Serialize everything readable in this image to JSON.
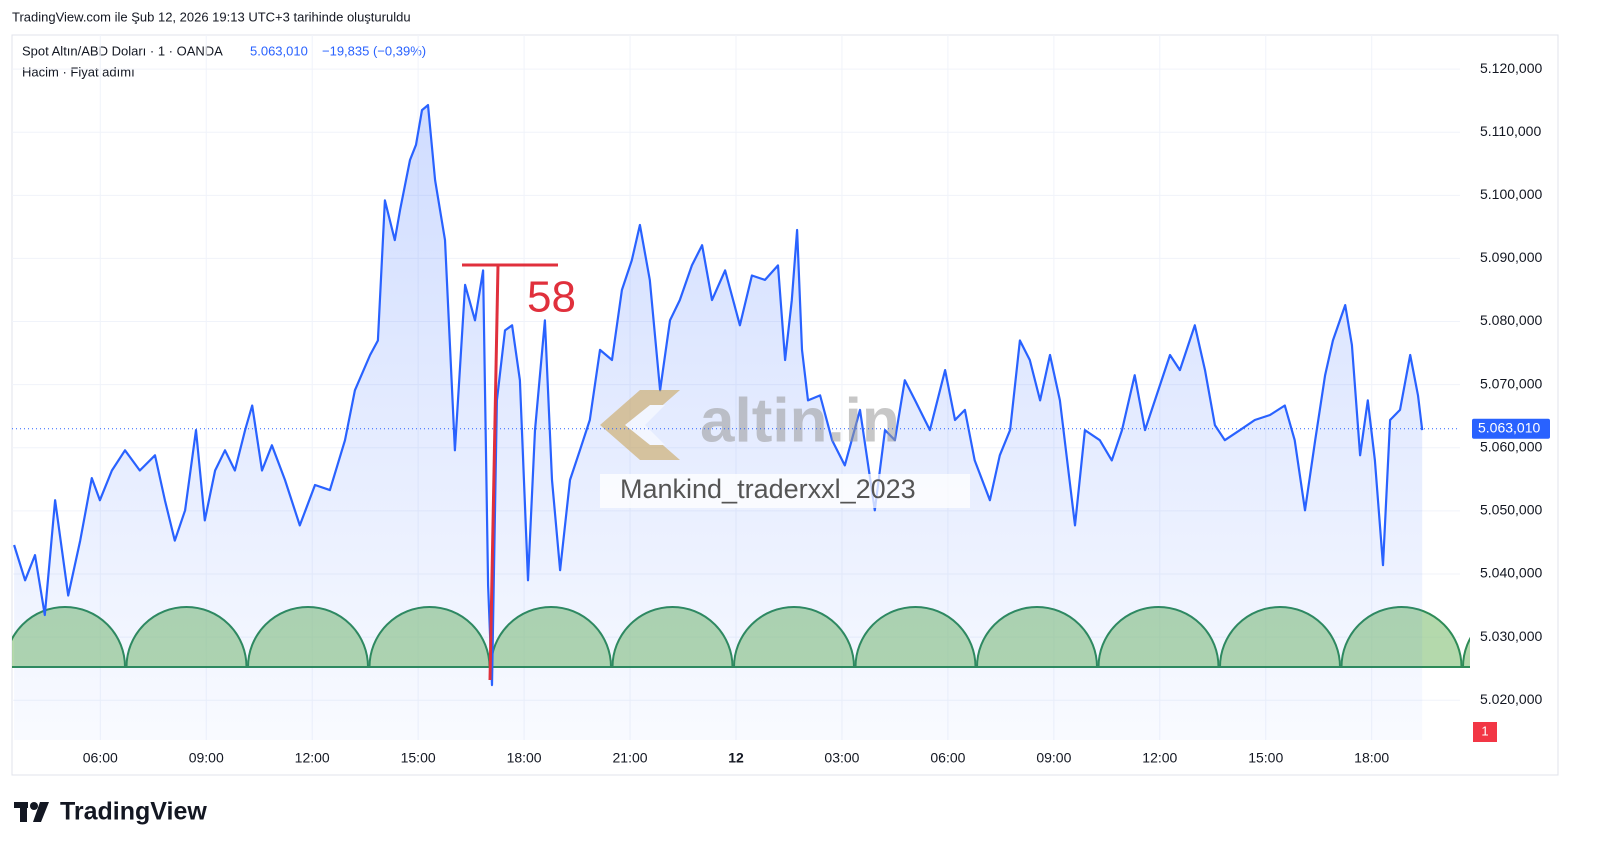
{
  "chart_data": {
    "type": "area",
    "caption": "TradingView.com ile Şub 12, 2026 19:13 UTC+3 tarihinde oluşturuldu",
    "title": "Spot Altın/ABD Doları · 1 · OANDA",
    "last_price": {
      "value": 5063.01,
      "label": "5.063,010"
    },
    "change": "−19,835 (−0,39%)",
    "subtitle": "Hacim · Fiyat adımı",
    "color": "#2962ff",
    "annotation": "58",
    "watermark": "altin.in",
    "watermark_user": "Mankind_traderxxl_2023",
    "alert_count": 1,
    "brand": "TradingView",
    "xlim": [
      3.5,
      44.5
    ],
    "ylim": [
      5013.7,
      5125.4
    ],
    "xticks": [
      {
        "value": 6,
        "label": "06:00"
      },
      {
        "value": 9,
        "label": "09:00"
      },
      {
        "value": 12,
        "label": "12:00"
      },
      {
        "value": 15,
        "label": "15:00"
      },
      {
        "value": 18,
        "label": "18:00"
      },
      {
        "value": 21,
        "label": "21:00"
      },
      {
        "value": 24,
        "label": "12"
      },
      {
        "value": 27,
        "label": "03:00"
      },
      {
        "value": 30,
        "label": "06:00"
      },
      {
        "value": 33,
        "label": "09:00"
      },
      {
        "value": 36,
        "label": "12:00"
      },
      {
        "value": 39,
        "label": "15:00"
      },
      {
        "value": 42,
        "label": "18:00"
      }
    ],
    "yticks": [
      {
        "value": 5020,
        "label": "5.020,000"
      },
      {
        "value": 5030,
        "label": "5.030,000"
      },
      {
        "value": 5040,
        "label": "5.040,000"
      },
      {
        "value": 5050,
        "label": "5.050,000"
      },
      {
        "value": 5060,
        "label": "5.060,000"
      },
      {
        "value": 5070,
        "label": "5.070,000"
      },
      {
        "value": 5080,
        "label": "5.080,000"
      },
      {
        "value": 5090,
        "label": "5.090,000"
      },
      {
        "value": 5100,
        "label": "5.100,000"
      },
      {
        "value": 5110,
        "label": "5.110,000"
      },
      {
        "value": 5120,
        "label": "5.120,000"
      }
    ],
    "x": [
      3.56,
      3.87,
      4.15,
      4.43,
      4.72,
      5.09,
      5.43,
      5.76,
      5.99,
      6.33,
      6.7,
      7.12,
      7.55,
      7.83,
      8.11,
      8.4,
      8.71,
      8.96,
      9.25,
      9.53,
      9.81,
      10.1,
      10.3,
      10.58,
      10.86,
      11.23,
      11.65,
      12.08,
      12.5,
      12.93,
      13.21,
      13.64,
      13.86,
      14.06,
      14.34,
      14.49,
      14.77,
      14.94,
      15.11,
      15.28,
      15.48,
      15.76,
      16.04,
      16.33,
      16.61,
      16.84,
      16.98,
      17.09,
      17.23,
      17.46,
      17.66,
      17.88,
      18.11,
      18.31,
      18.59,
      18.79,
      19.02,
      19.3,
      19.58,
      19.86,
      20.15,
      20.49,
      20.77,
      21.05,
      21.28,
      21.56,
      21.85,
      22.13,
      22.41,
      22.75,
      23.04,
      23.32,
      23.69,
      24.11,
      24.45,
      24.82,
      25.19,
      25.39,
      25.58,
      25.73,
      25.87,
      26.04,
      26.38,
      26.72,
      27.08,
      27.51,
      27.93,
      28.22,
      28.5,
      28.78,
      29.07,
      29.49,
      29.92,
      30.2,
      30.48,
      30.76,
      31.19,
      31.47,
      31.76,
      32.04,
      32.32,
      32.61,
      32.89,
      33.17,
      33.6,
      33.88,
      34.3,
      34.64,
      34.93,
      35.29,
      35.58,
      35.86,
      36.29,
      36.57,
      36.99,
      37.28,
      37.56,
      37.84,
      38.27,
      38.69,
      39.12,
      39.54,
      39.82,
      40.11,
      40.4,
      40.68,
      40.9,
      41.25,
      41.44,
      41.67,
      41.89,
      42.09,
      42.32,
      42.52,
      42.8,
      43.09,
      43.31,
      43.43
    ],
    "values": [
      5044.6,
      5039.0,
      5043.0,
      5033.5,
      5051.7,
      5036.6,
      5045.3,
      5055.2,
      5051.7,
      5056.4,
      5059.6,
      5056.4,
      5058.8,
      5051.7,
      5045.3,
      5050.1,
      5062.8,
      5048.5,
      5056.4,
      5059.6,
      5056.4,
      5062.8,
      5066.7,
      5056.4,
      5060.4,
      5054.9,
      5047.7,
      5054.1,
      5053.3,
      5061.2,
      5069.1,
      5074.7,
      5077.0,
      5099.2,
      5092.9,
      5097.7,
      5105.6,
      5108.0,
      5113.5,
      5114.3,
      5102.4,
      5092.9,
      5059.6,
      5085.8,
      5080.2,
      5088.1,
      5038.2,
      5022.4,
      5067.5,
      5078.6,
      5079.4,
      5070.7,
      5039.0,
      5062.8,
      5080.2,
      5054.9,
      5040.6,
      5054.9,
      5059.6,
      5064.4,
      5075.5,
      5073.9,
      5085.0,
      5089.7,
      5095.3,
      5086.6,
      5069.1,
      5080.2,
      5083.4,
      5088.9,
      5092.1,
      5083.4,
      5088.1,
      5079.4,
      5087.3,
      5086.6,
      5088.9,
      5073.9,
      5083.4,
      5094.5,
      5075.5,
      5067.5,
      5068.3,
      5061.2,
      5057.2,
      5066.0,
      5050.1,
      5062.8,
      5061.2,
      5070.7,
      5067.5,
      5062.8,
      5072.3,
      5064.4,
      5066.0,
      5058.0,
      5051.7,
      5058.8,
      5062.8,
      5077.0,
      5073.9,
      5067.5,
      5074.7,
      5067.5,
      5047.7,
      5062.8,
      5061.2,
      5058.0,
      5062.8,
      5071.5,
      5062.8,
      5067.5,
      5074.7,
      5072.3,
      5079.4,
      5072.3,
      5063.6,
      5061.2,
      5062.8,
      5064.4,
      5065.2,
      5066.7,
      5061.2,
      5050.1,
      5061.2,
      5071.5,
      5077.0,
      5082.6,
      5076.3,
      5058.8,
      5067.5,
      5058.0,
      5041.4,
      5064.4,
      5066.0,
      5074.7,
      5068.3,
      5062.8
    ]
  }
}
